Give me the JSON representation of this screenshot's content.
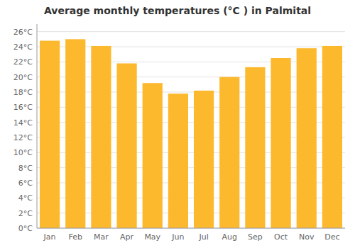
{
  "chart_data": {
    "type": "bar",
    "title": "Average monthly temperatures (°C ) in Palmital",
    "categories": [
      "Jan",
      "Feb",
      "Mar",
      "Apr",
      "May",
      "Jun",
      "Jul",
      "Aug",
      "Sep",
      "Oct",
      "Nov",
      "Dec"
    ],
    "values": [
      24.8,
      25.0,
      24.1,
      21.8,
      19.2,
      17.8,
      18.2,
      20.0,
      21.3,
      22.5,
      23.8,
      24.1
    ],
    "color": "#FDB92E",
    "ylim": [
      0,
      27
    ],
    "yticks": [
      {
        "value": 0,
        "label": "0°C"
      },
      {
        "value": 2,
        "label": "2°C"
      },
      {
        "value": 4,
        "label": "4°C"
      },
      {
        "value": 6,
        "label": "6°C"
      },
      {
        "value": 8,
        "label": "8°C"
      },
      {
        "value": 10,
        "label": "10°C"
      },
      {
        "value": 12,
        "label": "12°C"
      },
      {
        "value": 14,
        "label": "14°C"
      },
      {
        "value": 16,
        "label": "16°C"
      },
      {
        "value": 18,
        "label": "18°C"
      },
      {
        "value": 20,
        "label": "20°C"
      },
      {
        "value": 22,
        "label": "22°C"
      },
      {
        "value": 24,
        "label": "24°C"
      },
      {
        "value": 26,
        "label": "26°C"
      }
    ],
    "grid": true
  }
}
